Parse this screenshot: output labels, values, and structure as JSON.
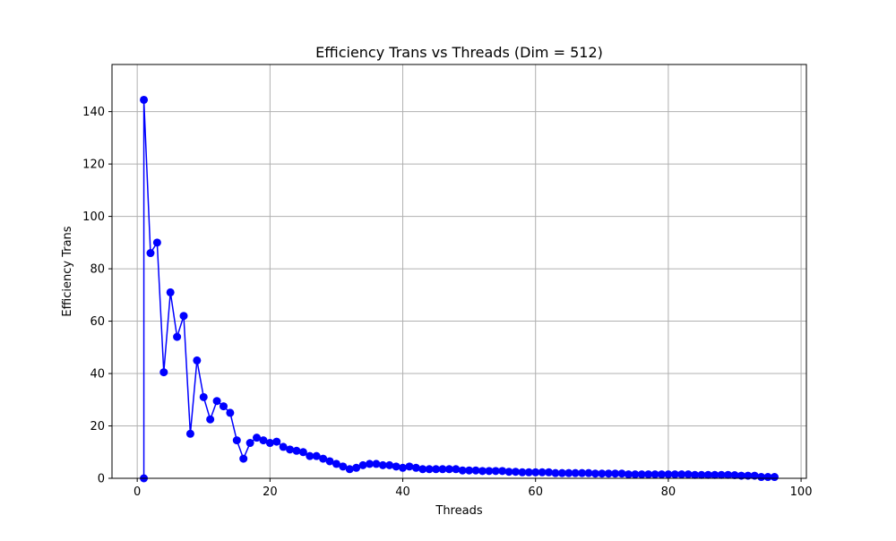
{
  "chart_data": {
    "type": "line",
    "title": "Efficiency Trans vs Threads (Dim = 512)",
    "xlabel": "Threads",
    "ylabel": "Efficiency Trans",
    "xlim": [
      -3.8,
      100.8
    ],
    "ylim": [
      0,
      158
    ],
    "xticks": [
      0,
      20,
      40,
      60,
      80,
      100
    ],
    "yticks": [
      0,
      20,
      40,
      60,
      80,
      100,
      120,
      140
    ],
    "grid": true,
    "legend": "none",
    "colors": {
      "line": "#0000ff",
      "marker": "#0000ff",
      "grid": "#b0b0b0",
      "axes": "#000000"
    },
    "series": [
      {
        "x": [
          1,
          1,
          2,
          3,
          4,
          5,
          6,
          7,
          8,
          9,
          10,
          11,
          12,
          13,
          14,
          15,
          16,
          17,
          18,
          19,
          20,
          21,
          22,
          23,
          24,
          25,
          26,
          27,
          28,
          29,
          30,
          31,
          32,
          33,
          34,
          35,
          36,
          37,
          38,
          39,
          40,
          41,
          42,
          43,
          44,
          45,
          46,
          47,
          48,
          49,
          50,
          51,
          52,
          53,
          54,
          55,
          56,
          57,
          58,
          59,
          60,
          61,
          62,
          63,
          64,
          65,
          66,
          67,
          68,
          69,
          70,
          71,
          72,
          73,
          74,
          75,
          76,
          77,
          78,
          79,
          80,
          81,
          82,
          83,
          84,
          85,
          86,
          87,
          88,
          89,
          90,
          91,
          92,
          93,
          94,
          95,
          96
        ],
        "y": [
          0,
          144.5,
          86,
          90,
          40.5,
          71,
          54,
          62,
          17,
          45,
          31,
          22.5,
          29.5,
          27.5,
          25,
          14.5,
          7.5,
          13.5,
          15.5,
          14.5,
          13.5,
          14,
          12,
          11,
          10.5,
          10,
          8.5,
          8.5,
          7.5,
          6.5,
          5.5,
          4.5,
          3.5,
          4,
          5,
          5.5,
          5.5,
          5,
          5,
          4.5,
          4,
          4.5,
          4,
          3.5,
          3.5,
          3.5,
          3.5,
          3.5,
          3.5,
          3,
          3,
          3,
          2.8,
          2.8,
          2.8,
          2.8,
          2.5,
          2.5,
          2.3,
          2.3,
          2.3,
          2.3,
          2.3,
          2,
          2,
          2,
          2,
          2,
          2,
          1.8,
          1.8,
          1.8,
          1.8,
          1.8,
          1.5,
          1.5,
          1.5,
          1.5,
          1.5,
          1.5,
          1.5,
          1.5,
          1.5,
          1.5,
          1.3,
          1.3,
          1.3,
          1.3,
          1.3,
          1.3,
          1.2,
          1,
          1,
          1,
          0.5,
          0.5,
          0.5
        ]
      }
    ]
  }
}
